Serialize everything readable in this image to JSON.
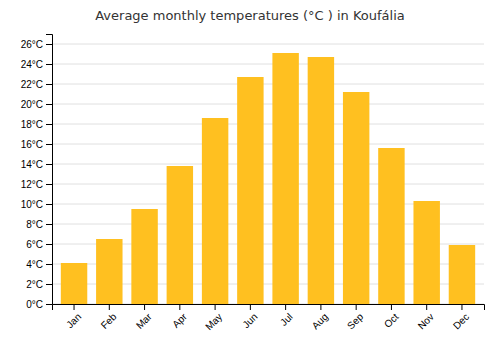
{
  "chart_data": {
    "type": "bar",
    "title": "Average monthly temperatures (°C ) in Koufália",
    "categories": [
      "Jan",
      "Feb",
      "Mar",
      "Apr",
      "May",
      "Jun",
      "Jul",
      "Aug",
      "Sep",
      "Oct",
      "Nov",
      "Dec"
    ],
    "values": [
      4.1,
      6.5,
      9.5,
      13.8,
      18.6,
      22.7,
      25.1,
      24.7,
      21.2,
      15.6,
      10.3,
      5.9
    ],
    "color": "#FFC020",
    "ylim": [
      0,
      27
    ],
    "yticks": [
      {
        "value": 0,
        "label": "0°C"
      },
      {
        "value": 2,
        "label": "2°C"
      },
      {
        "value": 4,
        "label": "4°C"
      },
      {
        "value": 6,
        "label": "6°C"
      },
      {
        "value": 8,
        "label": "8°C"
      },
      {
        "value": 10,
        "label": "10°C"
      },
      {
        "value": 12,
        "label": "12°C"
      },
      {
        "value": 14,
        "label": "14°C"
      },
      {
        "value": 16,
        "label": "16°C"
      },
      {
        "value": 18,
        "label": "18°C"
      },
      {
        "value": 20,
        "label": "20°C"
      },
      {
        "value": 22,
        "label": "22°C"
      },
      {
        "value": 24,
        "label": "24°C"
      },
      {
        "value": 26,
        "label": "26°C"
      }
    ],
    "grid": true
  }
}
